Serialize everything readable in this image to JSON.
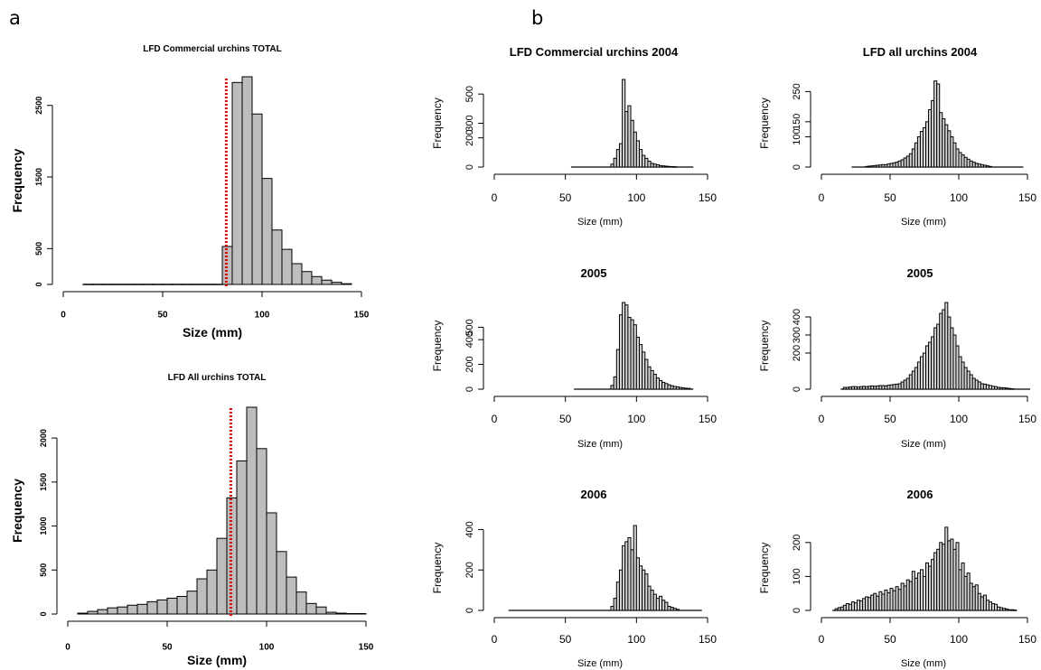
{
  "panel_labels": [
    "a",
    "b"
  ],
  "colors": {
    "bar_fill_a": "#bdbdbd",
    "bar_fill_b": "#d6d6d6",
    "reference_line": "#dd0000",
    "axis": "#000000"
  },
  "chart_data": [
    {
      "type": "bar",
      "panel": "a",
      "title": "LFD Commercial urchins TOTAL",
      "xlabel": "Size (mm)",
      "ylabel": "Frequency",
      "xlim": [
        0,
        150
      ],
      "ylim": [
        0,
        2900
      ],
      "xticks": [
        0,
        50,
        100,
        150
      ],
      "yticks": [
        0,
        500,
        1500,
        2500
      ],
      "reference_line_x": 82,
      "bin_width": 5,
      "bin_starts": [
        10,
        15,
        20,
        25,
        30,
        35,
        40,
        45,
        50,
        55,
        60,
        65,
        70,
        75,
        80,
        85,
        90,
        95,
        100,
        105,
        110,
        115,
        120,
        125,
        130,
        135,
        140
      ],
      "values": [
        3,
        3,
        3,
        3,
        3,
        3,
        3,
        3,
        3,
        3,
        3,
        3,
        3,
        3,
        530,
        2820,
        2900,
        2380,
        1480,
        760,
        490,
        290,
        180,
        110,
        60,
        30,
        10
      ]
    },
    {
      "type": "bar",
      "panel": "a",
      "title": "LFD All urchins TOTAL",
      "xlabel": "Size (mm)",
      "ylabel": "Frequency",
      "xlim": [
        0,
        150
      ],
      "ylim": [
        0,
        2350
      ],
      "xticks": [
        0,
        50,
        100,
        150
      ],
      "yticks": [
        0,
        500,
        1000,
        1500,
        2000
      ],
      "reference_line_x": 82,
      "bin_width": 5,
      "bin_starts": [
        5,
        10,
        15,
        20,
        25,
        30,
        35,
        40,
        45,
        50,
        55,
        60,
        65,
        70,
        75,
        80,
        85,
        90,
        95,
        100,
        105,
        110,
        115,
        120,
        125,
        130,
        135,
        140,
        145
      ],
      "values": [
        10,
        30,
        50,
        70,
        80,
        100,
        110,
        140,
        160,
        180,
        200,
        260,
        400,
        500,
        860,
        1320,
        1740,
        2350,
        1880,
        1150,
        710,
        420,
        250,
        120,
        80,
        20,
        10,
        5,
        5
      ]
    },
    {
      "type": "bar",
      "panel": "b",
      "title": "LFD Commercial urchins 2004",
      "xlabel": "Size (mm)",
      "ylabel": "Frequency",
      "xlim": [
        0,
        150
      ],
      "ylim": [
        0,
        600
      ],
      "xticks": [
        0,
        50,
        100,
        150
      ],
      "yticks": [
        0,
        200,
        300,
        500
      ],
      "bin_width": 2,
      "bin_starts": [
        82,
        84,
        86,
        88,
        90,
        92,
        94,
        96,
        98,
        100,
        102,
        104,
        106,
        108,
        110,
        112,
        114,
        116,
        118,
        120,
        122,
        124,
        126
      ],
      "values": [
        20,
        60,
        120,
        160,
        600,
        380,
        420,
        320,
        240,
        180,
        120,
        80,
        60,
        40,
        25,
        20,
        15,
        10,
        8,
        6,
        4,
        3,
        2
      ],
      "baseline_range": [
        54,
        140
      ]
    },
    {
      "type": "bar",
      "panel": "b",
      "title": "LFD all urchins 2004",
      "xlabel": "Size (mm)",
      "ylabel": "Frequency",
      "xlim": [
        0,
        150
      ],
      "ylim": [
        0,
        290
      ],
      "xticks": [
        0,
        50,
        100,
        150
      ],
      "yticks": [
        0,
        100,
        150,
        250
      ],
      "bin_width": 2,
      "bin_starts": [
        32,
        34,
        36,
        38,
        40,
        42,
        44,
        46,
        48,
        50,
        52,
        54,
        56,
        58,
        60,
        62,
        64,
        66,
        68,
        70,
        72,
        74,
        76,
        78,
        80,
        82,
        84,
        86,
        88,
        90,
        92,
        94,
        96,
        98,
        100,
        102,
        104,
        106,
        108,
        110,
        112,
        114,
        116,
        118,
        120,
        122
      ],
      "values": [
        2,
        3,
        4,
        5,
        6,
        7,
        8,
        8,
        10,
        12,
        14,
        16,
        20,
        24,
        30,
        36,
        44,
        60,
        80,
        100,
        118,
        130,
        150,
        190,
        220,
        285,
        275,
        180,
        160,
        140,
        120,
        100,
        80,
        60,
        48,
        40,
        32,
        26,
        20,
        16,
        12,
        10,
        8,
        6,
        4,
        2
      ],
      "baseline_range": [
        22,
        147
      ]
    },
    {
      "type": "bar",
      "panel": "b",
      "title": "2005",
      "xlabel": "Size (mm)",
      "ylabel": "Frequency",
      "xlim": [
        0,
        150
      ],
      "ylim": [
        0,
        700
      ],
      "xticks": [
        0,
        50,
        100,
        150
      ],
      "yticks": [
        0,
        200,
        400,
        500
      ],
      "bin_width": 2,
      "bin_starts": [
        82,
        84,
        86,
        88,
        90,
        92,
        94,
        96,
        98,
        100,
        102,
        104,
        106,
        108,
        110,
        112,
        114,
        116,
        118,
        120,
        122,
        124,
        126,
        128,
        130,
        132,
        134,
        136
      ],
      "values": [
        30,
        100,
        320,
        600,
        700,
        680,
        580,
        560,
        520,
        420,
        360,
        300,
        240,
        180,
        150,
        120,
        90,
        70,
        55,
        45,
        35,
        28,
        22,
        18,
        14,
        10,
        8,
        6
      ],
      "baseline_range": [
        56,
        140
      ]
    },
    {
      "type": "bar",
      "panel": "b",
      "title": "2005",
      "xlabel": "Size (mm)",
      "ylabel": "Frequency",
      "xlim": [
        0,
        150
      ],
      "ylim": [
        0,
        480
      ],
      "xticks": [
        0,
        50,
        100,
        150
      ],
      "yticks": [
        0,
        200,
        300,
        400
      ],
      "bin_width": 2,
      "bin_starts": [
        16,
        18,
        20,
        22,
        24,
        26,
        28,
        30,
        32,
        34,
        36,
        38,
        40,
        42,
        44,
        46,
        48,
        50,
        52,
        54,
        56,
        58,
        60,
        62,
        64,
        66,
        68,
        70,
        72,
        74,
        76,
        78,
        80,
        82,
        84,
        86,
        88,
        90,
        92,
        94,
        96,
        98,
        100,
        102,
        104,
        106,
        108,
        110,
        112,
        114,
        116,
        118,
        120,
        122,
        124,
        126,
        128,
        130,
        132,
        134,
        136,
        138
      ],
      "values": [
        10,
        10,
        12,
        14,
        14,
        12,
        14,
        16,
        14,
        16,
        18,
        16,
        18,
        20,
        20,
        18,
        22,
        24,
        26,
        28,
        30,
        40,
        50,
        60,
        80,
        100,
        120,
        150,
        180,
        200,
        240,
        260,
        290,
        340,
        360,
        420,
        440,
        480,
        400,
        340,
        300,
        240,
        180,
        150,
        120,
        100,
        80,
        60,
        50,
        40,
        30,
        28,
        24,
        20,
        16,
        14,
        10,
        8,
        8,
        6,
        4,
        2
      ],
      "baseline_range": [
        14,
        152
      ]
    },
    {
      "type": "bar",
      "panel": "b",
      "title": "2006",
      "xlabel": "Size (mm)",
      "ylabel": "Frequency",
      "xlim": [
        0,
        150
      ],
      "ylim": [
        0,
        420
      ],
      "xticks": [
        0,
        50,
        100,
        150
      ],
      "yticks": [
        0,
        200,
        400
      ],
      "bin_width": 2,
      "bin_starts": [
        82,
        84,
        86,
        88,
        90,
        92,
        94,
        96,
        98,
        100,
        102,
        104,
        106,
        108,
        110,
        112,
        114,
        116,
        118,
        120,
        122,
        124,
        126,
        128
      ],
      "values": [
        20,
        60,
        140,
        200,
        320,
        340,
        360,
        300,
        420,
        260,
        220,
        200,
        180,
        120,
        100,
        80,
        60,
        70,
        50,
        40,
        20,
        15,
        10,
        5
      ],
      "baseline_range": [
        10,
        146
      ]
    },
    {
      "type": "bar",
      "panel": "b",
      "title": "2006",
      "xlabel": "Size (mm)",
      "ylabel": "Frequency",
      "xlim": [
        0,
        150
      ],
      "ylim": [
        0,
        250
      ],
      "xticks": [
        0,
        50,
        100,
        150
      ],
      "yticks": [
        0,
        100,
        200
      ],
      "bin_width": 2,
      "bin_starts": [
        10,
        12,
        14,
        16,
        18,
        20,
        22,
        24,
        26,
        28,
        30,
        32,
        34,
        36,
        38,
        40,
        42,
        44,
        46,
        48,
        50,
        52,
        54,
        56,
        58,
        60,
        62,
        64,
        66,
        68,
        70,
        72,
        74,
        76,
        78,
        80,
        82,
        84,
        86,
        88,
        90,
        92,
        94,
        96,
        98,
        100,
        102,
        104,
        106,
        108,
        110,
        112,
        114,
        116,
        118,
        120,
        122,
        124,
        126,
        128,
        130,
        132,
        134,
        136,
        138,
        140
      ],
      "values": [
        5,
        8,
        10,
        15,
        20,
        18,
        25,
        22,
        30,
        28,
        35,
        40,
        38,
        45,
        50,
        42,
        55,
        48,
        60,
        52,
        65,
        58,
        70,
        62,
        80,
        72,
        90,
        85,
        115,
        95,
        110,
        120,
        100,
        140,
        130,
        150,
        170,
        180,
        200,
        195,
        245,
        205,
        210,
        180,
        200,
        120,
        140,
        100,
        110,
        80,
        70,
        75,
        50,
        40,
        45,
        30,
        25,
        20,
        18,
        10,
        8,
        6,
        4,
        2,
        2,
        1
      ],
      "baseline_range": [
        8,
        142
      ]
    }
  ]
}
